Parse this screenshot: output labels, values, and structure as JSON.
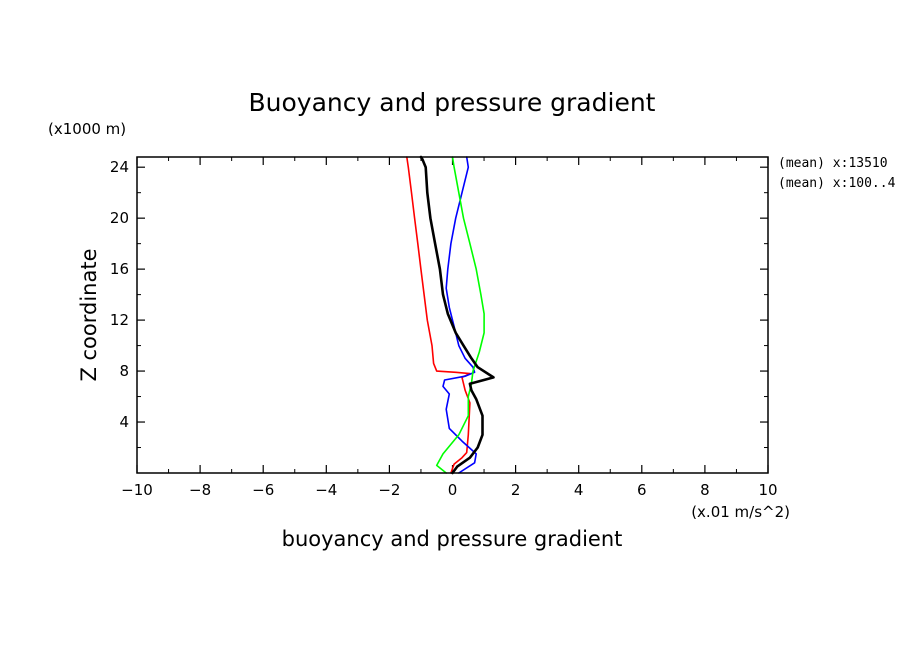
{
  "chart_data": {
    "type": "line",
    "title": "Buoyancy and pressure gradient",
    "xlabel": "buoyancy and pressure gradient",
    "ylabel": "Z coordinate",
    "x_unit": "(x.01 m/s^2)",
    "y_unit": "(x1000 m)",
    "xlim": [
      -10,
      10
    ],
    "ylim": [
      0,
      24.8
    ],
    "xticks": [
      -10,
      -8,
      -6,
      -4,
      -2,
      0,
      2,
      4,
      6,
      8,
      10
    ],
    "yticks": [
      4,
      8,
      12,
      16,
      20,
      24
    ],
    "xtick_labels": [
      "−10",
      "−8",
      "−6",
      "−4",
      "−2",
      "0",
      "2",
      "4",
      "6",
      "8",
      "10"
    ],
    "ytick_labels": [
      "4",
      "8",
      "12",
      "16",
      "20",
      "24"
    ],
    "annotations": [
      "(mean) x:13510",
      "(mean) x:100..4"
    ],
    "series": [
      {
        "color": "#ff0000",
        "points": [
          [
            -0.05,
            0.0
          ],
          [
            0.05,
            0.7
          ],
          [
            0.3,
            1.2
          ],
          [
            0.45,
            1.6
          ],
          [
            0.5,
            3.0
          ],
          [
            0.55,
            5.5
          ],
          [
            0.4,
            6.5
          ],
          [
            0.3,
            7.5
          ],
          [
            0.55,
            7.8
          ],
          [
            0.1,
            7.9
          ],
          [
            -0.5,
            8.0
          ],
          [
            -0.6,
            8.6
          ],
          [
            -0.65,
            10.0
          ],
          [
            -0.8,
            12.0
          ],
          [
            -0.9,
            14.0
          ],
          [
            -1.0,
            16.0
          ],
          [
            -1.1,
            18.0
          ],
          [
            -1.2,
            20.0
          ],
          [
            -1.3,
            22.0
          ],
          [
            -1.4,
            24.0
          ],
          [
            -1.45,
            24.8
          ]
        ]
      },
      {
        "color": "#0000ff",
        "points": [
          [
            0.2,
            0.0
          ],
          [
            0.7,
            0.8
          ],
          [
            0.75,
            1.5
          ],
          [
            0.3,
            2.5
          ],
          [
            -0.1,
            3.5
          ],
          [
            -0.2,
            5.0
          ],
          [
            -0.1,
            6.2
          ],
          [
            -0.3,
            6.8
          ],
          [
            -0.25,
            7.3
          ],
          [
            0.4,
            7.6
          ],
          [
            0.7,
            7.9
          ],
          [
            0.65,
            8.3
          ],
          [
            0.4,
            9.0
          ],
          [
            0.2,
            10.0
          ],
          [
            0.05,
            11.5
          ],
          [
            -0.1,
            13.0
          ],
          [
            -0.2,
            14.5
          ],
          [
            -0.15,
            16.0
          ],
          [
            -0.05,
            18.0
          ],
          [
            0.1,
            20.0
          ],
          [
            0.3,
            22.0
          ],
          [
            0.5,
            24.0
          ],
          [
            0.45,
            24.8
          ]
        ]
      },
      {
        "color": "#00ff00",
        "points": [
          [
            -0.2,
            0.0
          ],
          [
            -0.5,
            0.6
          ],
          [
            -0.3,
            1.5
          ],
          [
            0.2,
            3.0
          ],
          [
            0.5,
            4.5
          ],
          [
            0.5,
            6.0
          ],
          [
            0.6,
            7.0
          ],
          [
            0.65,
            8.0
          ],
          [
            0.85,
            9.5
          ],
          [
            1.0,
            11.0
          ],
          [
            1.0,
            12.5
          ],
          [
            0.9,
            14.0
          ],
          [
            0.75,
            16.0
          ],
          [
            0.55,
            18.0
          ],
          [
            0.35,
            20.0
          ],
          [
            0.2,
            22.0
          ],
          [
            0.05,
            24.0
          ],
          [
            0.0,
            24.8
          ]
        ]
      },
      {
        "color": "#000000",
        "points": [
          [
            0.0,
            0.0
          ],
          [
            0.15,
            0.5
          ],
          [
            0.55,
            1.2
          ],
          [
            0.8,
            2.0
          ],
          [
            0.95,
            3.0
          ],
          [
            0.95,
            4.5
          ],
          [
            0.75,
            5.8
          ],
          [
            0.6,
            6.5
          ],
          [
            0.55,
            7.0
          ],
          [
            1.3,
            7.5
          ],
          [
            0.8,
            8.3
          ],
          [
            0.6,
            9.0
          ],
          [
            0.35,
            10.0
          ],
          [
            0.1,
            11.0
          ],
          [
            -0.15,
            12.5
          ],
          [
            -0.3,
            14.0
          ],
          [
            -0.4,
            16.0
          ],
          [
            -0.55,
            18.0
          ],
          [
            -0.7,
            20.0
          ],
          [
            -0.8,
            22.0
          ],
          [
            -0.85,
            24.0
          ],
          [
            -0.95,
            24.6
          ],
          [
            -1.0,
            24.8
          ]
        ]
      }
    ]
  }
}
